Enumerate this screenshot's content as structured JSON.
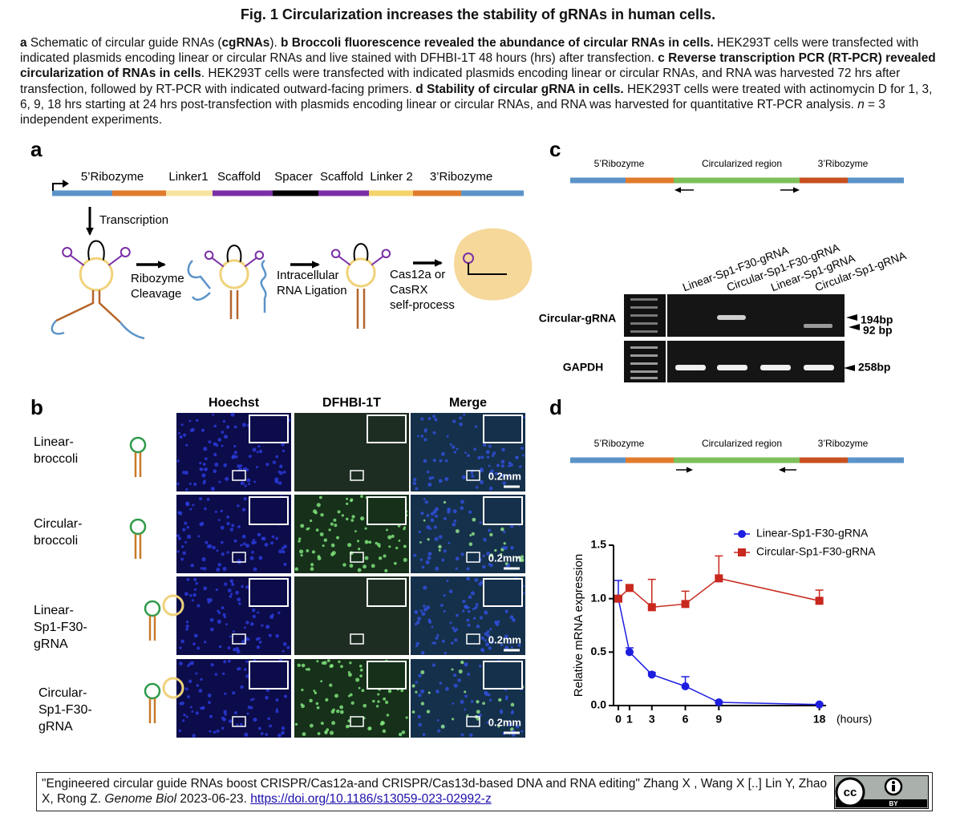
{
  "title": "Fig. 1 Circularization increases the stability of gRNAs in human cells.",
  "caption": [
    {
      "text": "a",
      "style": "bold"
    },
    {
      "text": " Schematic of circular guide RNAs (",
      "style": "normal"
    },
    {
      "text": "cgRNAs",
      "style": "bold"
    },
    {
      "text": "). ",
      "style": "normal"
    },
    {
      "text": "b Broccoli fluorescence revealed the abundance of circular RNAs in cells.",
      "style": "bold"
    },
    {
      "text": " HEK293T cells were transfected with indicated plasmids encoding linear or circular RNAs and live stained with DFHBI-1T 48 hours (hrs) after transfection. ",
      "style": "normal"
    },
    {
      "text": "c Reverse transcription PCR (RT-PCR) revealed circularization of RNAs in cells",
      "style": "bold"
    },
    {
      "text": ". HEK293T cells were transfected with indicated plasmids encoding linear or circular RNAs, and RNA was harvested 72 hrs after transfection, followed by RT-PCR with indicated outward-facing primers. ",
      "style": "normal"
    },
    {
      "text": "d Stability of circular gRNA in cells.",
      "style": "bold"
    },
    {
      "text": " HEK293T cells were treated with actinomycin D for 1, 3, 6, 9, 18 hrs starting at 24 hrs post-transfection with plasmids encoding linear or circular RNAs, and RNA was harvested for quantitative RT-PCR analysis. ",
      "style": "normal"
    },
    {
      "text": "n",
      "style": "italic"
    },
    {
      "text": " = 3 independent experiments.",
      "style": "normal"
    }
  ],
  "panel_a": {
    "label": "a",
    "construct": [
      "5’Ribozyme",
      "Linker1",
      "Scaffold",
      "Spacer",
      "Scaffold",
      "Linker 2",
      "3’Ribozyme"
    ],
    "steps": [
      [
        "Transcription"
      ],
      [
        "Ribozyme",
        "Cleavage"
      ],
      [
        "Intracellular",
        "RNA Ligation"
      ],
      [
        "Cas12a or",
        "CasRX",
        "self-process"
      ]
    ]
  },
  "panel_b": {
    "label": "b",
    "columns": [
      "Hoechst",
      "DFHBI-1T",
      "Merge"
    ],
    "rows": [
      [
        "Linear-",
        "broccoli"
      ],
      [
        "Circular-",
        "broccoli"
      ],
      [
        "Linear-",
        "Sp1-F30-",
        "gRNA"
      ],
      [
        "Circular-",
        "Sp1-F30-",
        "gRNA"
      ]
    ],
    "scale_bar": "0.2mm"
  },
  "panel_c": {
    "label": "c",
    "regions": [
      "5’Ribozyme",
      "Circularized region",
      "3’Ribozyme"
    ],
    "lanes": [
      "Linear-Sp1-F30-gRNA",
      "Circular-Sp1-F30-gRNA",
      "Linear-Sp1-gRNA",
      "Circular-Sp1-gRNA"
    ],
    "rows": [
      "Circular-gRNA",
      "GAPDH"
    ],
    "band_sizes": [
      "194bp",
      "92 bp",
      "258bp"
    ]
  },
  "panel_d": {
    "label": "d",
    "regions": [
      "5’Ribozyme",
      "Circularized region",
      "3’Ribozyme"
    ]
  },
  "chart_data": {
    "type": "line",
    "x": [
      0,
      1,
      3,
      6,
      9,
      18
    ],
    "xlim": [
      -0.43,
      18.6
    ],
    "xticks": [
      0,
      1,
      3,
      6,
      9,
      18
    ],
    "x_label": "(hours)",
    "y_label": "Relative mRNA expression",
    "ylim": [
      0,
      1.5
    ],
    "yticks": [
      {
        "value": 0,
        "label": "0.0"
      },
      {
        "value": 0.5,
        "label": "0.5"
      },
      {
        "value": 1,
        "label": "1.0"
      },
      1.5
    ],
    "legend": "top-right",
    "series": [
      {
        "name": "Linear-Sp1-F30-gRNA",
        "color": "#1e1ee0",
        "marker": "circle",
        "values": [
          1.0,
          0.5,
          0.29,
          0.18,
          0.03,
          0.01
        ],
        "errors": [
          0.17,
          0.04,
          0.02,
          0.09,
          0.01,
          0.01
        ]
      },
      {
        "name": "Circular-Sp1-F30-gRNA",
        "color": "#c8281e",
        "marker": "square",
        "values": [
          1.0,
          1.1,
          0.92,
          0.95,
          1.19,
          0.98
        ],
        "errors": [
          0.02,
          0.02,
          0.26,
          0.12,
          0.21,
          0.1
        ]
      }
    ]
  },
  "footer": {
    "citation": "\"Engineered circular guide RNAs boost CRISPR/Cas12a-and CRISPR/Cas13d-based DNA and RNA editing\" Zhang X , Wang X [..] Lin Y, Zhao X, Rong Z. ",
    "journal": "Genome Biol",
    "date": " 2023-06-23. ",
    "doi": "https://doi.org/10.1186/s13059-023-02992-z",
    "license": [
      "cc",
      "BY"
    ]
  }
}
